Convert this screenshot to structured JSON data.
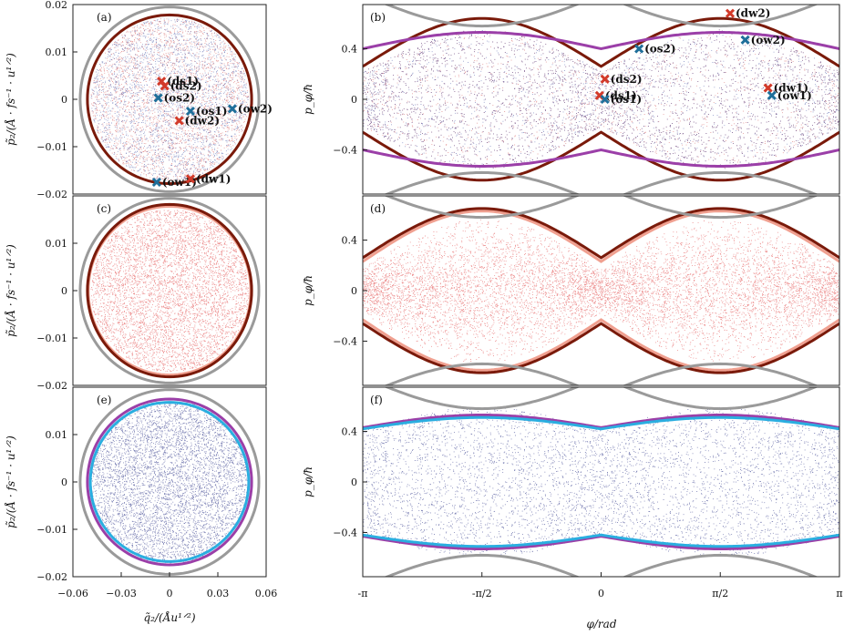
{
  "chart_data": [
    {
      "id": "a",
      "type": "scatter",
      "panel_label": "(a)",
      "ylabel": "p̃₂/(Å · fs⁻¹ · u¹ᐟ²)",
      "xlim": [
        -0.06,
        0.06
      ],
      "ylim": [
        -0.02,
        0.02
      ],
      "xticks": [],
      "yticks": [
        "−0.02",
        "−0.01",
        "0",
        "0.01",
        "0.02"
      ],
      "cloud": "mixed",
      "curves": [
        {
          "kind": "ellipse",
          "color": "#9a9a9a",
          "rx": 0.0555,
          "ry": 0.0195
        },
        {
          "kind": "ellipse",
          "color": "#7a1a0a",
          "rx": 0.051,
          "ry": 0.0178
        }
      ],
      "markers": [
        {
          "label": "(ds1)",
          "x": -0.005,
          "y": 0.0038,
          "color": "#d23a2a"
        },
        {
          "label": "(ds2)",
          "x": -0.003,
          "y": 0.0028,
          "color": "#d23a2a"
        },
        {
          "label": "(os2)",
          "x": -0.007,
          "y": 0.0003,
          "color": "#1f6f9a"
        },
        {
          "label": "(os1)",
          "x": 0.013,
          "y": -0.0025,
          "color": "#1f6f9a"
        },
        {
          "label": "(ow2)",
          "x": 0.039,
          "y": -0.002,
          "color": "#1f6f9a"
        },
        {
          "label": "(dw2)",
          "x": 0.006,
          "y": -0.0045,
          "color": "#d23a2a"
        },
        {
          "label": "(ow1)",
          "x": -0.008,
          "y": -0.0175,
          "color": "#1f6f9a"
        },
        {
          "label": "(dw1)",
          "x": 0.013,
          "y": -0.0168,
          "color": "#d23a2a"
        }
      ]
    },
    {
      "id": "b",
      "type": "scatter",
      "panel_label": "(b)",
      "ylabel": "p_φ/ħ",
      "xlim": [
        -3.1416,
        3.1416
      ],
      "ylim": [
        -0.75,
        0.75
      ],
      "xticks": [],
      "yticks": [
        "−0.4",
        "0",
        "0.4"
      ],
      "cloud": "mixed",
      "curves": [
        {
          "kind": "separatrix",
          "color": "#7a1a0a",
          "a": 0.42,
          "b": 0.26
        },
        {
          "kind": "flat",
          "color": "#9b3fa8",
          "a": 0.53,
          "b": 0.13
        },
        {
          "kind": "gray_arcs",
          "color": "#9a9a9a"
        }
      ],
      "markers": [
        {
          "label": "(dw2)",
          "x": 1.7,
          "y": 0.68,
          "color": "#d23a2a"
        },
        {
          "label": "(os2)",
          "x": 0.5,
          "y": 0.4,
          "color": "#1f6f9a"
        },
        {
          "label": "(ow2)",
          "x": 1.9,
          "y": 0.47,
          "color": "#1f6f9a"
        },
        {
          "label": "(ds2)",
          "x": 0.05,
          "y": 0.16,
          "color": "#d23a2a"
        },
        {
          "label": "(ds1)",
          "x": -0.02,
          "y": 0.03,
          "color": "#d23a2a"
        },
        {
          "label": "(os1)",
          "x": 0.05,
          "y": 0.0,
          "color": "#1f6f9a"
        },
        {
          "label": "(dw1)",
          "x": 2.2,
          "y": 0.09,
          "color": "#d23a2a"
        },
        {
          "label": "(ow1)",
          "x": 2.25,
          "y": 0.03,
          "color": "#1f6f9a"
        }
      ]
    },
    {
      "id": "c",
      "type": "scatter",
      "panel_label": "(c)",
      "ylabel": "p̃₂/(Å · fs⁻¹ · u¹ᐟ²)",
      "xlim": [
        -0.06,
        0.06
      ],
      "ylim": [
        -0.02,
        0.02
      ],
      "xticks": [],
      "yticks": [
        "−0.02",
        "−0.01",
        "0",
        "0.01"
      ],
      "cloud": "red",
      "curves": [
        {
          "kind": "ellipse",
          "color": "#9a9a9a",
          "rx": 0.0555,
          "ry": 0.0195
        },
        {
          "kind": "ellipse",
          "color": "#f0a090",
          "rx": 0.0505,
          "ry": 0.0178
        },
        {
          "kind": "ellipse",
          "color": "#7a1a0a",
          "rx": 0.051,
          "ry": 0.0182
        }
      ],
      "markers": []
    },
    {
      "id": "d",
      "type": "scatter",
      "panel_label": "(d)",
      "ylabel": "p_φ/ħ",
      "xlim": [
        -3.1416,
        3.1416
      ],
      "ylim": [
        -0.75,
        0.75
      ],
      "xticks": [],
      "yticks": [
        "−0.4",
        "0",
        "0.4"
      ],
      "cloud": "red_separatrix",
      "curves": [
        {
          "kind": "separatrix",
          "color": "#f0a090",
          "a": 0.41,
          "b": 0.23
        },
        {
          "kind": "separatrix",
          "color": "#7a1a0a",
          "a": 0.43,
          "b": 0.26
        },
        {
          "kind": "gray_arcs",
          "color": "#9a9a9a"
        }
      ],
      "markers": []
    },
    {
      "id": "e",
      "type": "scatter",
      "panel_label": "(e)",
      "ylabel": "p̃₂/(Å · fs⁻¹ · u¹ᐟ²)",
      "xlim": [
        -0.06,
        0.06
      ],
      "ylim": [
        -0.02,
        0.02
      ],
      "xticks": [
        "−0.06",
        "−0.03",
        "0",
        "0.03",
        "0.06"
      ],
      "yticks": [
        "−0.02",
        "−0.01",
        "0",
        "0.01"
      ],
      "xlabel": "q̃₂/(Åu¹ᐟ²)",
      "cloud": "blue",
      "curves": [
        {
          "kind": "ellipse",
          "color": "#9a9a9a",
          "rx": 0.0555,
          "ry": 0.0195
        },
        {
          "kind": "ellipse",
          "color": "#9b3fa8",
          "rx": 0.051,
          "ry": 0.0175
        },
        {
          "kind": "ellipse",
          "color": "#2aaee0",
          "rx": 0.0492,
          "ry": 0.0168
        }
      ],
      "markers": []
    },
    {
      "id": "f",
      "type": "scatter",
      "panel_label": "(f)",
      "ylabel": "p_φ/ħ",
      "xlim": [
        -3.1416,
        3.1416
      ],
      "ylim": [
        -0.75,
        0.75
      ],
      "xticks": [
        "-π",
        "-π/2",
        "0",
        "π/2",
        "π"
      ],
      "yticks": [
        "−0.4",
        "0",
        "0.4"
      ],
      "xlabel": "φ/rad",
      "cloud": "blue_flat",
      "curves": [
        {
          "kind": "flat",
          "color": "#9b3fa8",
          "a": 0.53,
          "b": 0.1
        },
        {
          "kind": "flat",
          "color": "#2aaee0",
          "a": 0.51,
          "b": 0.09
        },
        {
          "kind": "gray_arcs",
          "color": "#9a9a9a"
        }
      ],
      "markers": []
    }
  ]
}
